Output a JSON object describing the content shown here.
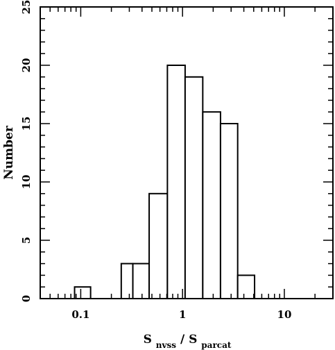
{
  "chart_data": {
    "type": "bar",
    "x_scale": "log",
    "xlim": [
      0.04,
      30
    ],
    "ylim": [
      0,
      25
    ],
    "grid": false,
    "xlabel": {
      "main": "S",
      "sub1": "nvss",
      "slash": "/",
      "main2": "S",
      "sub2": "parcat"
    },
    "ylabel": "Number",
    "x_ticks": [
      {
        "value": 0.1,
        "label": "0.1"
      },
      {
        "value": 1,
        "label": "1"
      },
      {
        "value": 10,
        "label": "10"
      }
    ],
    "y_ticks": [
      {
        "value": 0,
        "label": "0"
      },
      {
        "value": 5,
        "label": "5"
      },
      {
        "value": 10,
        "label": "10"
      },
      {
        "value": 15,
        "label": "15"
      },
      {
        "value": 20,
        "label": "20"
      },
      {
        "value": 25,
        "label": "25"
      }
    ],
    "bins": [
      {
        "x0": 0.087,
        "x1": 0.125,
        "count": 1
      },
      {
        "x0": 0.25,
        "x1": 0.325,
        "count": 3
      },
      {
        "x0": 0.325,
        "x1": 0.47,
        "count": 3
      },
      {
        "x0": 0.47,
        "x1": 0.71,
        "count": 9
      },
      {
        "x0": 0.71,
        "x1": 1.06,
        "count": 20
      },
      {
        "x0": 1.06,
        "x1": 1.58,
        "count": 19
      },
      {
        "x0": 1.58,
        "x1": 2.36,
        "count": 16
      },
      {
        "x0": 2.36,
        "x1": 3.48,
        "count": 15
      },
      {
        "x0": 3.48,
        "x1": 5.1,
        "count": 2
      }
    ]
  }
}
